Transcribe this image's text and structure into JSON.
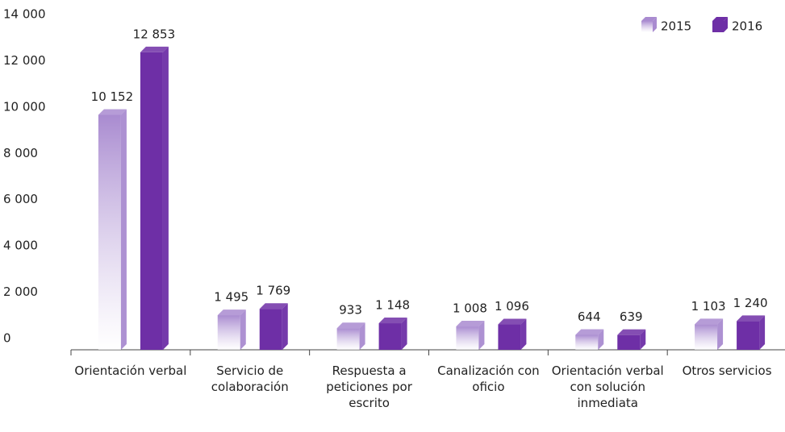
{
  "chart_data": {
    "type": "bar",
    "categories": [
      "Orientación verbal",
      "Servicio de colaboración",
      "Respuesta a peticiones por escrito",
      "Canalización con oficio",
      "Orientación verbal con solución inmediata",
      "Otros servicios"
    ],
    "series": [
      {
        "name": "2015",
        "color": "#a98bd0",
        "values": [
          10152,
          1495,
          933,
          1008,
          644,
          1103
        ],
        "value_labels": [
          "10 152",
          "1 495",
          "933",
          "1 008",
          "644",
          "1 103"
        ]
      },
      {
        "name": "2016",
        "color": "#6e2fa6",
        "values": [
          12853,
          1769,
          1148,
          1096,
          639,
          1240
        ],
        "value_labels": [
          "12 853",
          "1 769",
          "1 148",
          "1 096",
          "639",
          "1 240"
        ]
      }
    ],
    "ylim": [
      0,
      14000
    ],
    "yticks": [
      {
        "value": 0,
        "label": "0"
      },
      {
        "value": 2000,
        "label": "2 000"
      },
      {
        "value": 4000,
        "label": "4 000"
      },
      {
        "value": 6000,
        "label": "6 000"
      },
      {
        "value": 8000,
        "label": "8 000"
      },
      {
        "value": 10000,
        "label": "10 000"
      },
      {
        "value": 12000,
        "label": "12 000"
      },
      {
        "value": 14000,
        "label": "14 000"
      }
    ],
    "legend": "top-right"
  }
}
